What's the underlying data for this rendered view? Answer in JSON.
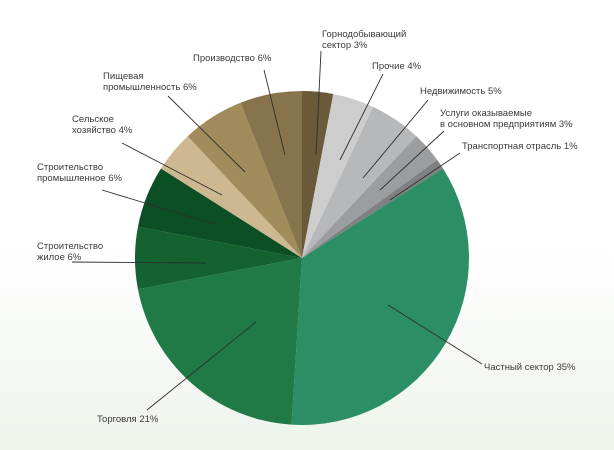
{
  "chart_data": {
    "type": "pie",
    "title": "",
    "slices": [
      {
        "lines": [
          "Горнодобывающий",
          "сектор 3%"
        ],
        "value": 3,
        "color": "#6a5a3a"
      },
      {
        "lines": [
          "Прочие 4%"
        ],
        "value": 4,
        "color": "#cdcdcd"
      },
      {
        "lines": [
          "Недвижимость 5%"
        ],
        "value": 5,
        "color": "#b7b8ba"
      },
      {
        "lines": [
          "Услуги оказываемые",
          "в основном предприятиям 3%"
        ],
        "value": 3,
        "color": "#9c9d9f"
      },
      {
        "lines": [
          "Транспортная отрасль 1%"
        ],
        "value": 1,
        "color": "#7f8082"
      },
      {
        "lines": [
          "Частный сектор 35%"
        ],
        "value": 35,
        "color": "#2b8e66"
      },
      {
        "lines": [
          "Торговля 21%"
        ],
        "value": 21,
        "color": "#1f7a46"
      },
      {
        "lines": [
          "Строительство",
          "жилое 6%"
        ],
        "value": 6,
        "color": "#13622f"
      },
      {
        "lines": [
          "Строительство",
          "промышленное 6%"
        ],
        "value": 6,
        "color": "#0c4f24"
      },
      {
        "lines": [
          "Сельское",
          "хозяйство 4%"
        ],
        "value": 4,
        "color": "#cdb891"
      },
      {
        "lines": [
          "Пищевая",
          "промышленность 6%"
        ],
        "value": 6,
        "color": "#a38c5c"
      },
      {
        "lines": [
          "Производство 6%"
        ],
        "value": 6,
        "color": "#87744d"
      }
    ]
  }
}
